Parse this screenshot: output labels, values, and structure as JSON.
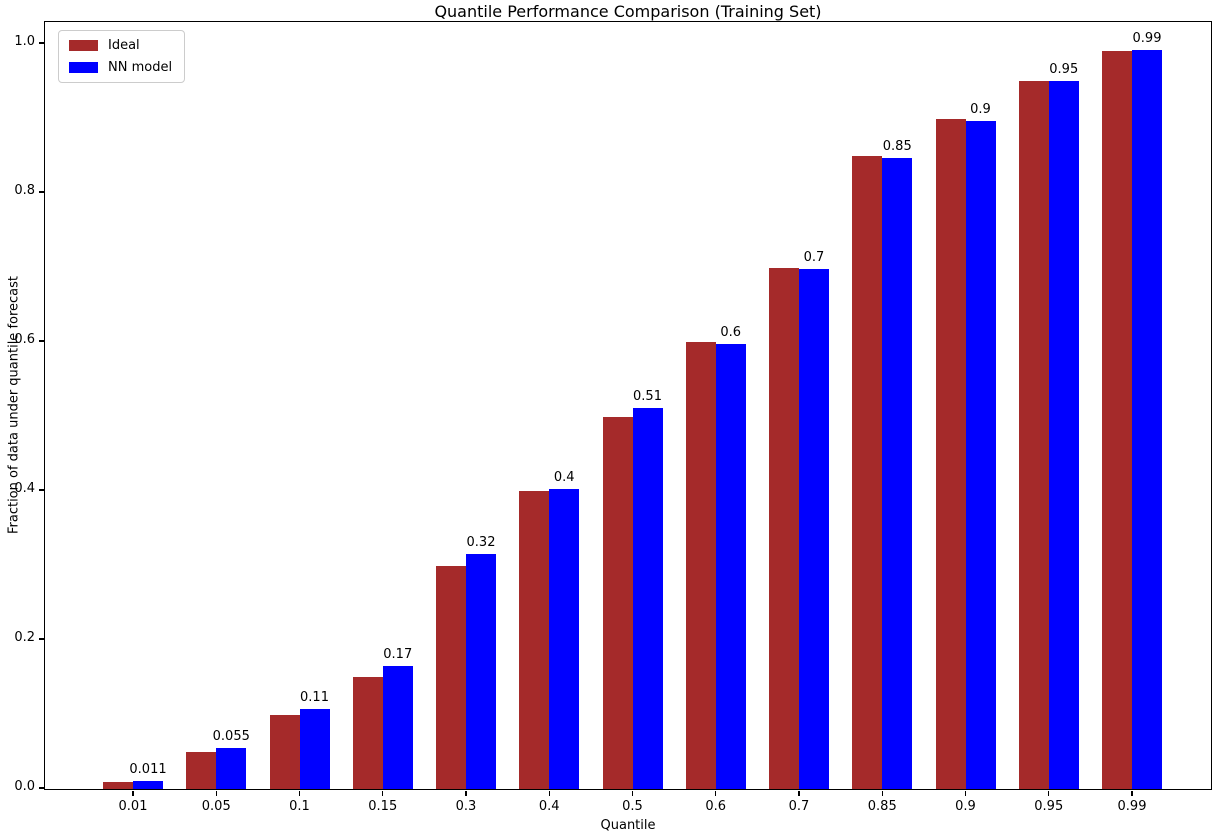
{
  "chart_data": {
    "type": "bar",
    "title": "Quantile Performance Comparison (Training Set)",
    "xlabel": "Quantile",
    "ylabel": "Fraction of data under quantile forecast",
    "categories": [
      "0.01",
      "0.05",
      "0.1",
      "0.15",
      "0.3",
      "0.4",
      "0.5",
      "0.6",
      "0.7",
      "0.85",
      "0.9",
      "0.95",
      "0.99"
    ],
    "series": [
      {
        "name": "Ideal",
        "color": "#A52A2A",
        "values": [
          0.01,
          0.05,
          0.1,
          0.15,
          0.3,
          0.4,
          0.5,
          0.6,
          0.7,
          0.85,
          0.9,
          0.95,
          0.99
        ]
      },
      {
        "name": "NN model",
        "color": "#0000FF",
        "values": [
          0.011,
          0.055,
          0.107,
          0.165,
          0.315,
          0.403,
          0.512,
          0.597,
          0.698,
          0.847,
          0.897,
          0.951,
          0.992
        ],
        "bar_labels": [
          "0.011",
          "0.055",
          "0.11",
          "0.17",
          "0.32",
          "0.4",
          "0.51",
          "0.6",
          "0.7",
          "0.85",
          "0.9",
          "0.95",
          "0.99"
        ]
      }
    ],
    "yticks": [
      "0.0",
      "0.2",
      "0.4",
      "0.6",
      "0.8",
      "1.0"
    ],
    "ylim": [
      0,
      1.032
    ],
    "grid": false,
    "legend_position": "upper-left",
    "axis_color": "#000000",
    "background_color": "#ffffff"
  }
}
